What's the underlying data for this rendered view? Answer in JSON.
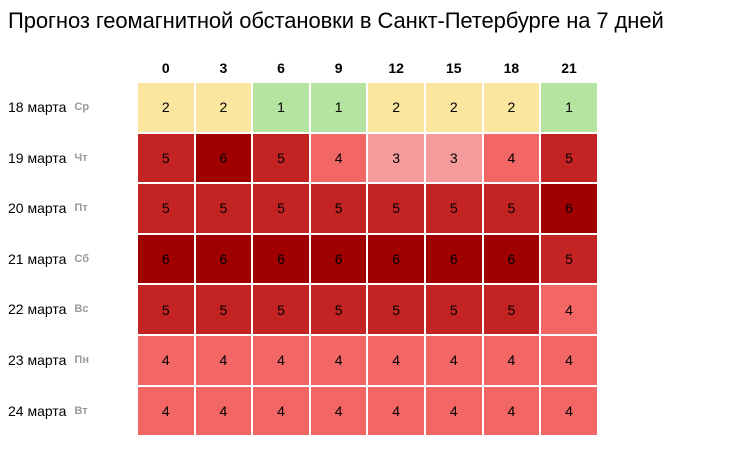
{
  "title": "Прогноз геомагнитной обстановки в Санкт-Петербурге на 7 дней",
  "colors": {
    "1": "#b5e3a0",
    "2": "#fbe6a0",
    "3": "#f59b9b",
    "4": "#f26666",
    "5": "#c32323",
    "6": "#a00000"
  },
  "chart_data": {
    "type": "heatmap",
    "x": [
      "0",
      "3",
      "6",
      "9",
      "12",
      "15",
      "18",
      "21"
    ],
    "rows": [
      {
        "date": "18 марта",
        "dow": "Ср",
        "values": [
          2,
          2,
          1,
          1,
          2,
          2,
          2,
          1
        ]
      },
      {
        "date": "19 марта",
        "dow": "Чт",
        "values": [
          5,
          6,
          5,
          4,
          3,
          3,
          4,
          5
        ]
      },
      {
        "date": "20 марта",
        "dow": "Пт",
        "values": [
          5,
          5,
          5,
          5,
          5,
          5,
          5,
          6
        ]
      },
      {
        "date": "21 марта",
        "dow": "Сб",
        "values": [
          6,
          6,
          6,
          6,
          6,
          6,
          6,
          5
        ]
      },
      {
        "date": "22 марта",
        "dow": "Вс",
        "values": [
          5,
          5,
          5,
          5,
          5,
          5,
          5,
          4
        ]
      },
      {
        "date": "23 марта",
        "dow": "Пн",
        "values": [
          4,
          4,
          4,
          4,
          4,
          4,
          4,
          4
        ]
      },
      {
        "date": "24 марта",
        "dow": "Вт",
        "values": [
          4,
          4,
          4,
          4,
          4,
          4,
          4,
          4
        ]
      }
    ]
  }
}
